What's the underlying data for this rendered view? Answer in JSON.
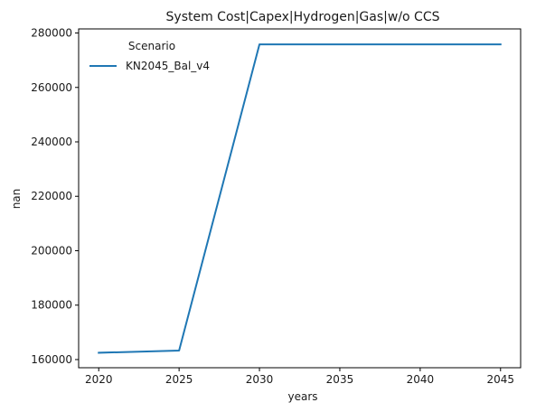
{
  "chart_data": {
    "type": "line",
    "title": "System Cost|Capex|Hydrogen|Gas|w/o CCS",
    "xlabel": "years",
    "ylabel": "nan",
    "x": [
      2020,
      2025,
      2030,
      2035,
      2040,
      2045
    ],
    "series": [
      {
        "name": "KN2045_Bal_v4",
        "color": "#1f77b4",
        "values": [
          162500,
          163300,
          275800,
          275800,
          275800,
          275800
        ]
      }
    ],
    "xlim": [
      2018.75,
      2046.25
    ],
    "ylim": [
      157000,
      281500
    ],
    "xticks": [
      2020,
      2025,
      2030,
      2035,
      2040,
      2045
    ],
    "yticks": [
      160000,
      180000,
      200000,
      220000,
      240000,
      260000,
      280000
    ],
    "legend": {
      "title": "Scenario",
      "placement": "top-left"
    },
    "grid": false
  }
}
